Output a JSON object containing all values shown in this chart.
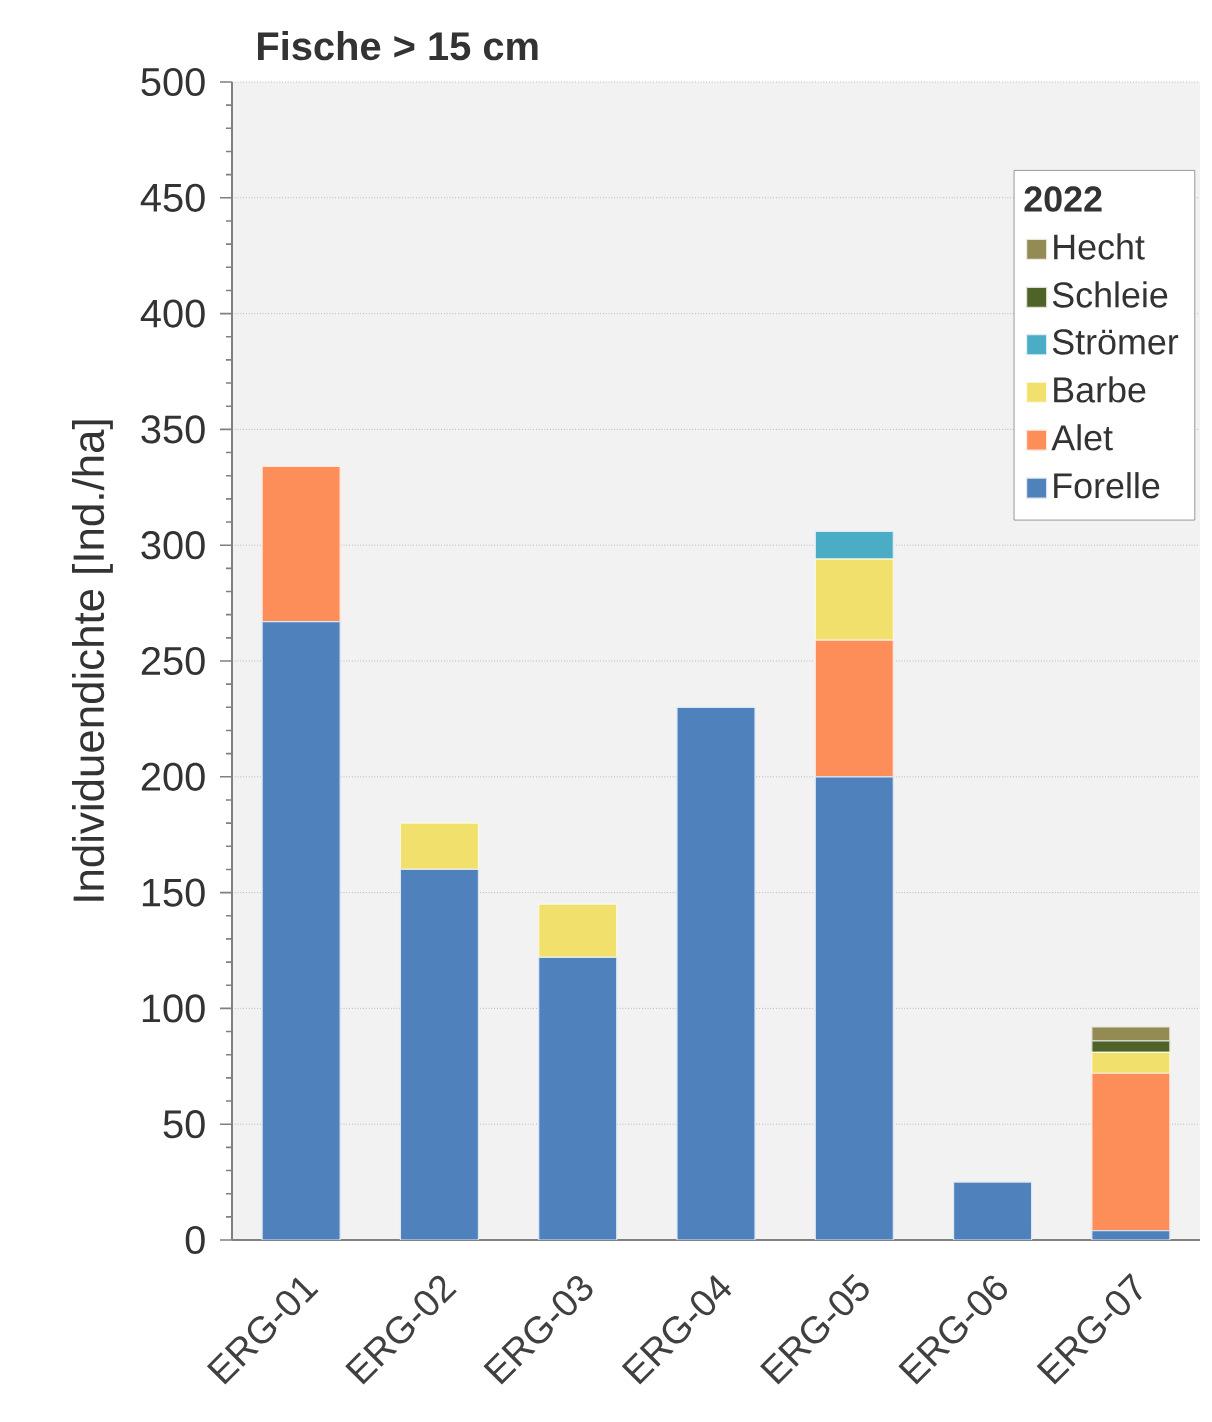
{
  "chart_data": {
    "type": "bar",
    "stacked": true,
    "title": "Fische > 15 cm",
    "ylabel": "Individuendichte [Ind./ha]",
    "legend_title": "2022",
    "categories": [
      "ERG-01",
      "ERG-02",
      "ERG-03",
      "ERG-04",
      "ERG-05",
      "ERG-06",
      "ERG-07"
    ],
    "series": [
      {
        "name": "Forelle",
        "color": "#4f81bd",
        "values": [
          267,
          160,
          122,
          230,
          200,
          25,
          4
        ]
      },
      {
        "name": "Alet",
        "color": "#fd8d59",
        "values": [
          67,
          0,
          0,
          0,
          59,
          0,
          68
        ]
      },
      {
        "name": "Barbe",
        "color": "#f1e06b",
        "values": [
          0,
          20,
          23,
          0,
          35,
          0,
          9
        ]
      },
      {
        "name": "Strömer",
        "color": "#4bacc6",
        "values": [
          0,
          0,
          0,
          0,
          12,
          0,
          0
        ]
      },
      {
        "name": "Schleie",
        "color": "#4f6228",
        "values": [
          0,
          0,
          0,
          0,
          0,
          0,
          5
        ]
      },
      {
        "name": "Hecht",
        "color": "#948a54",
        "values": [
          0,
          0,
          0,
          0,
          0,
          0,
          6
        ]
      }
    ],
    "ylim": [
      0,
      500
    ],
    "yticks": [
      0,
      50,
      100,
      150,
      200,
      250,
      300,
      350,
      400,
      450,
      500
    ],
    "grid": "y",
    "legend": "top right"
  }
}
